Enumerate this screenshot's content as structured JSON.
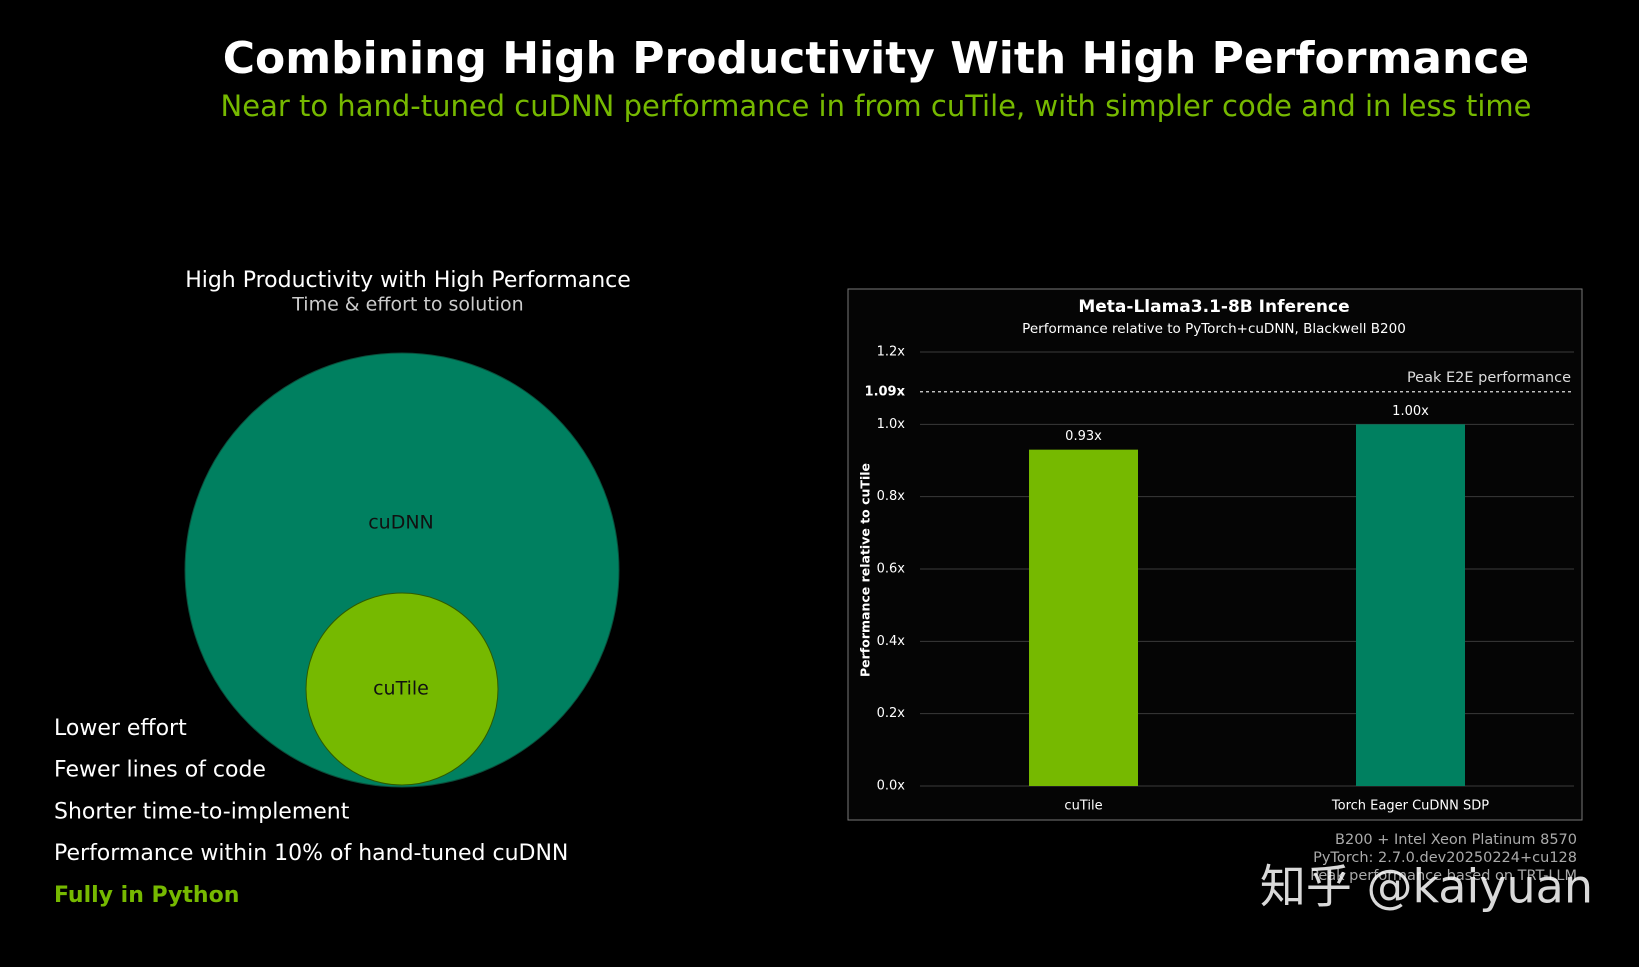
{
  "header": {
    "title": "Combining High Productivity With High Performance",
    "subtitle": "Near to hand-tuned cuDNN performance in from cuTile, with simpler code and in less time"
  },
  "diagram": {
    "title": "High Productivity with High Performance",
    "subtitle": "Time & effort to solution",
    "outer_label": "cuDNN",
    "inner_label": "cuTile"
  },
  "bullets": [
    "Lower effort",
    "Fewer lines of code",
    "Shorter time-to-implement",
    "Performance within 10% of hand-tuned cuDNN"
  ],
  "highlight": "Fully in Python",
  "chart_data": {
    "type": "bar",
    "title": "Meta-Llama3.1-8B Inference",
    "subtitle": "Performance relative to PyTorch+cuDNN, Blackwell B200",
    "y_label": "Performance relative to cuTile",
    "categories": [
      "cuTile",
      "Torch Eager CuDNN SDP"
    ],
    "values": [
      0.93,
      1.0
    ],
    "value_labels": [
      "0.93x",
      "1.00x"
    ],
    "colors": [
      "#76b900",
      "#008060"
    ],
    "ylim": [
      0,
      1.2
    ],
    "yticks": [
      {
        "value": 0,
        "label": "0.0x"
      },
      {
        "value": 0.2,
        "label": "0.2x"
      },
      {
        "value": 0.4,
        "label": "0.4x"
      },
      {
        "value": 0.6,
        "label": "0.6x"
      },
      {
        "value": 0.8,
        "label": "0.8x"
      },
      {
        "value": 1.0,
        "label": "1.0x"
      },
      {
        "value": 1.2,
        "label": "1.2x"
      }
    ],
    "grid": true,
    "reference_line": {
      "value": 1.09,
      "label": "1.09x",
      "text": "Peak E2E performance"
    }
  },
  "footnotes": [
    "B200 + Intel Xeon Platinum 8570",
    "PyTorch: 2.7.0.dev20250224+cu128",
    "Peak performance based on TRT-LLM"
  ],
  "watermark": "知乎 @kaiyuan"
}
